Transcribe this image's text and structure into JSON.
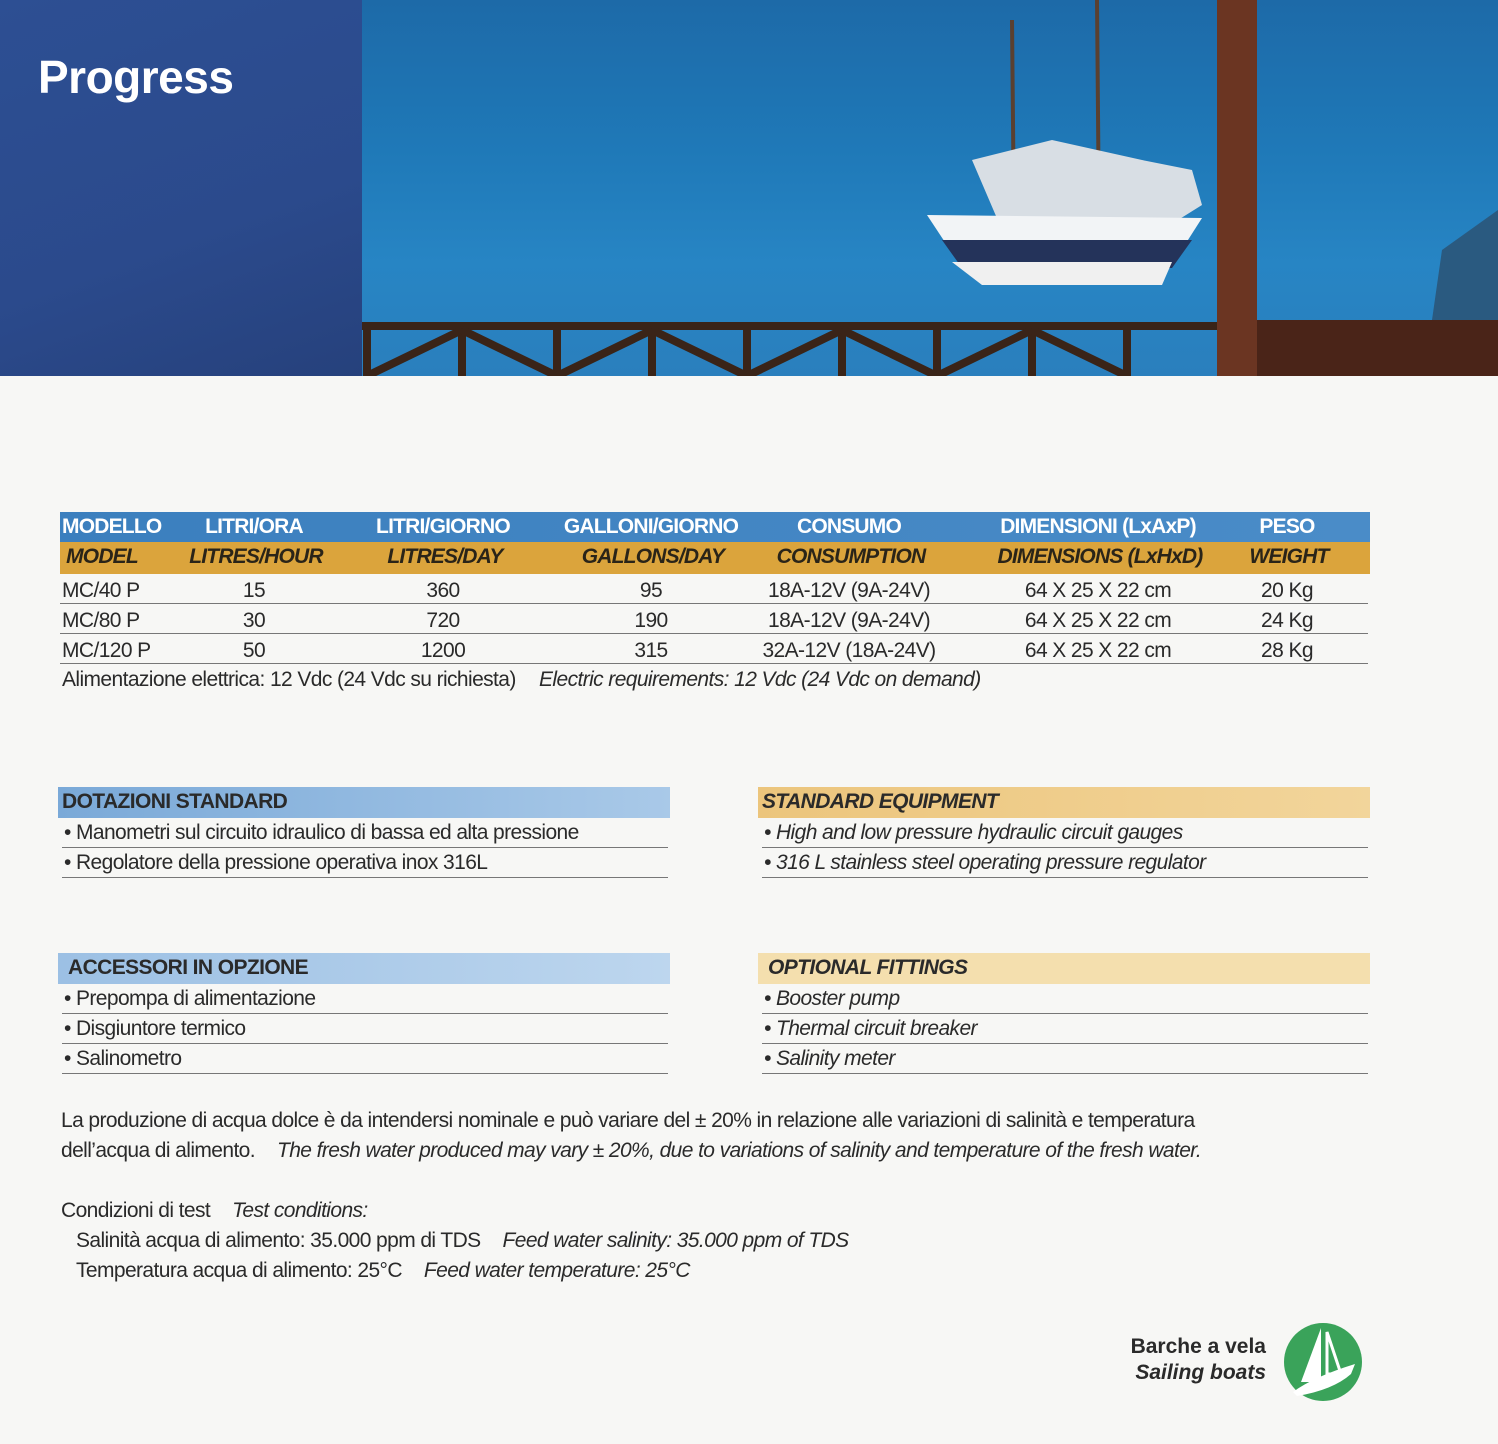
{
  "header": {
    "title": "Progress"
  },
  "table": {
    "headers_it": [
      "MODELLO",
      "LITRI/ORA",
      "LITRI/GIORNO",
      "GALLONI/GIORNO",
      "CONSUMO",
      "DIMENSIONI (LxAxP)",
      "PESO"
    ],
    "headers_en": [
      "MODEL",
      "LITRES/HOUR",
      "LITRES/DAY",
      "GALLONS/DAY",
      "CONSUMPTION",
      "DIMENSIONS (LxHxD)",
      "WEIGHT"
    ],
    "rows": [
      [
        "MC/40 P",
        "15",
        "360",
        "95",
        "18A-12V (9A-24V)",
        "64 X 25 X 22 cm",
        "20 Kg"
      ],
      [
        "MC/80 P",
        "30",
        "720",
        "190",
        "18A-12V (9A-24V)",
        "64 X 25 X 22 cm",
        "24 Kg"
      ],
      [
        "MC/120 P",
        "50",
        "1200",
        "315",
        "32A-12V (18A-24V)",
        "64 X 25 X 22 cm",
        "28 Kg"
      ]
    ],
    "note_it": "Alimentazione elettrica: 12 Vdc (24 Vdc su richiesta)",
    "note_en": "Electric requirements: 12 Vdc (24 Vdc on demand)"
  },
  "standard_it": {
    "title": "DOTAZIONI STANDARD",
    "items": [
      "• Manometri sul circuito idraulico di bassa ed alta pressione",
      "• Regolatore della pressione operativa inox 316L"
    ]
  },
  "standard_en": {
    "title": "STANDARD EQUIPMENT",
    "items": [
      "• High and low pressure hydraulic circuit gauges",
      "• 316 L stainless steel operating pressure regulator"
    ]
  },
  "optional_it": {
    "title": "ACCESSORI IN OPZIONE",
    "items": [
      "• Prepompa di alimentazione",
      "• Disgiuntore termico",
      "• Salinometro"
    ]
  },
  "optional_en": {
    "title": "OPTIONAL FITTINGS",
    "items": [
      "• Booster pump",
      "• Thermal circuit breaker",
      "• Salinity meter"
    ]
  },
  "disclaimer": {
    "it1": "La produzione di acqua dolce è da intendersi nominale e può variare del ± 20% in relazione alle variazioni di salinità e temperatura",
    "it2": "dell’acqua di alimento.",
    "en": "The fresh water produced may vary ± 20%, due to variations of salinity and temperature of the fresh water."
  },
  "test": {
    "label_it": "Condizioni di test",
    "label_en": "Test conditions:",
    "salinity_it": "Salinità acqua di alimento: 35.000 ppm di TDS",
    "salinity_en": "Feed water salinity: 35.000 ppm of TDS",
    "temp_it": "Temperatura acqua di alimento: 25°C",
    "temp_en": "Feed water temperature: 25°C"
  },
  "category": {
    "it": "Barche a vela",
    "en": "Sailing boats",
    "icon": "sailboat-icon",
    "color": "#3aa35a"
  }
}
